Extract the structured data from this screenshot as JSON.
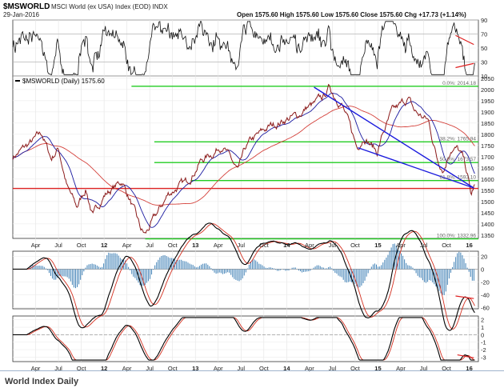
{
  "header": {
    "symbol": "$MSWORLD",
    "name": "MSCI World (ex USA) Index (EOD) INDX",
    "date": "29-Jan-2016",
    "ohlc": "Open 1575.60  High 1575.60  Low 1575.60  Close 1575.60  Chg +17.73 (+1.14%)"
  },
  "caption": "World Index Daily",
  "chart_data": [
    {
      "type": "line",
      "panel": "rsi",
      "y_ticks": [
        "90",
        "70",
        "50",
        "30",
        "10"
      ],
      "ylim": [
        10,
        90
      ],
      "levels": [
        70,
        30
      ],
      "annotations": [
        "divergence trendlines (red) near right edge"
      ]
    },
    {
      "type": "line",
      "panel": "price",
      "legend": "$MSWORLD (Daily) 1575.60",
      "x_ticks": [
        "Apr",
        "Jul",
        "Oct",
        "12",
        "Apr",
        "Jul",
        "Oct",
        "13",
        "Apr",
        "Jul",
        "Oct",
        "14",
        "Apr",
        "Jul",
        "Oct",
        "15",
        "Apr",
        "Jul",
        "Oct",
        "16"
      ],
      "y_ticks": [
        "2050",
        "2000",
        "1950",
        "1900",
        "1850",
        "1800",
        "1750",
        "1700",
        "1650",
        "1600",
        "1550",
        "1500",
        "1450",
        "1400",
        "1350"
      ],
      "ylim": [
        1335,
        2060
      ],
      "series": [
        {
          "values_ref": "price",
          "color": "#8b1a1a"
        },
        {
          "values_ref": "ma_short",
          "color": "#1a1aa0"
        },
        {
          "values_ref": "ma_long",
          "color": "#d4403a"
        }
      ],
      "fib_levels": [
        {
          "label": "0.0%: 2014.18",
          "value": 2014.18
        },
        {
          "label": "38.2%: 1765.94",
          "value": 1765.94
        },
        {
          "label": "50.0%: 1673.57",
          "value": 1673.57
        },
        {
          "label": "61.8%: 1593.10",
          "value": 1593.1
        },
        {
          "label": "100.0%: 1332.96",
          "value": 1332.96
        }
      ],
      "horizontal_line": 1558,
      "channel": {
        "upper": [
          [
            2014.3,
            2010
          ],
          [
            2016.05,
            1560
          ]
        ],
        "lower": [
          [
            2014.78,
            1740
          ],
          [
            2016.05,
            1560
          ]
        ]
      }
    },
    {
      "type": "line",
      "panel": "oscillator_1",
      "y_ticks": [
        "20",
        "0",
        "-20",
        "-40",
        "-60"
      ],
      "ylim": [
        -62,
        28
      ]
    },
    {
      "type": "line",
      "panel": "oscillator_2",
      "y_ticks": [
        "2",
        "1",
        "0",
        "-1",
        "-2",
        "-3"
      ],
      "ylim": [
        -3.6,
        2.5
      ]
    }
  ],
  "price_anchors": [
    [
      2011.0,
      1700
    ],
    [
      2011.2,
      1760
    ],
    [
      2011.32,
      1800
    ],
    [
      2011.42,
      1690
    ],
    [
      2011.5,
      1740
    ],
    [
      2011.6,
      1560
    ],
    [
      2011.7,
      1470
    ],
    [
      2011.8,
      1560
    ],
    [
      2011.88,
      1430
    ],
    [
      2011.96,
      1500
    ],
    [
      2012.0,
      1530
    ],
    [
      2012.1,
      1560
    ],
    [
      2012.2,
      1590
    ],
    [
      2012.3,
      1490
    ],
    [
      2012.4,
      1370
    ],
    [
      2012.45,
      1348
    ],
    [
      2012.55,
      1420
    ],
    [
      2012.62,
      1470
    ],
    [
      2012.7,
      1530
    ],
    [
      2012.8,
      1565
    ],
    [
      2012.9,
      1580
    ],
    [
      2012.95,
      1615
    ],
    [
      2013.05,
      1680
    ],
    [
      2013.2,
      1720
    ],
    [
      2013.3,
      1760
    ],
    [
      2013.38,
      1690
    ],
    [
      2013.47,
      1630
    ],
    [
      2013.55,
      1730
    ],
    [
      2013.62,
      1770
    ],
    [
      2013.7,
      1795
    ],
    [
      2013.8,
      1830
    ],
    [
      2013.9,
      1850
    ],
    [
      2014.0,
      1870
    ],
    [
      2014.12,
      1880
    ],
    [
      2014.22,
      1920
    ],
    [
      2014.3,
      1930
    ],
    [
      2014.4,
      1960
    ],
    [
      2014.47,
      2010
    ],
    [
      2014.52,
      1975
    ],
    [
      2014.6,
      1945
    ],
    [
      2014.7,
      1820
    ],
    [
      2014.77,
      1740
    ],
    [
      2014.85,
      1800
    ],
    [
      2014.92,
      1760
    ],
    [
      2014.99,
      1720
    ],
    [
      2015.05,
      1800
    ],
    [
      2015.15,
      1890
    ],
    [
      2015.25,
      1925
    ],
    [
      2015.33,
      1960
    ],
    [
      2015.4,
      1900
    ],
    [
      2015.47,
      1880
    ],
    [
      2015.55,
      1860
    ],
    [
      2015.65,
      1690
    ],
    [
      2015.72,
      1650
    ],
    [
      2015.8,
      1745
    ],
    [
      2015.87,
      1735
    ],
    [
      2015.93,
      1690
    ],
    [
      2015.98,
      1620
    ],
    [
      2016.02,
      1520
    ],
    [
      2016.06,
      1575
    ]
  ]
}
